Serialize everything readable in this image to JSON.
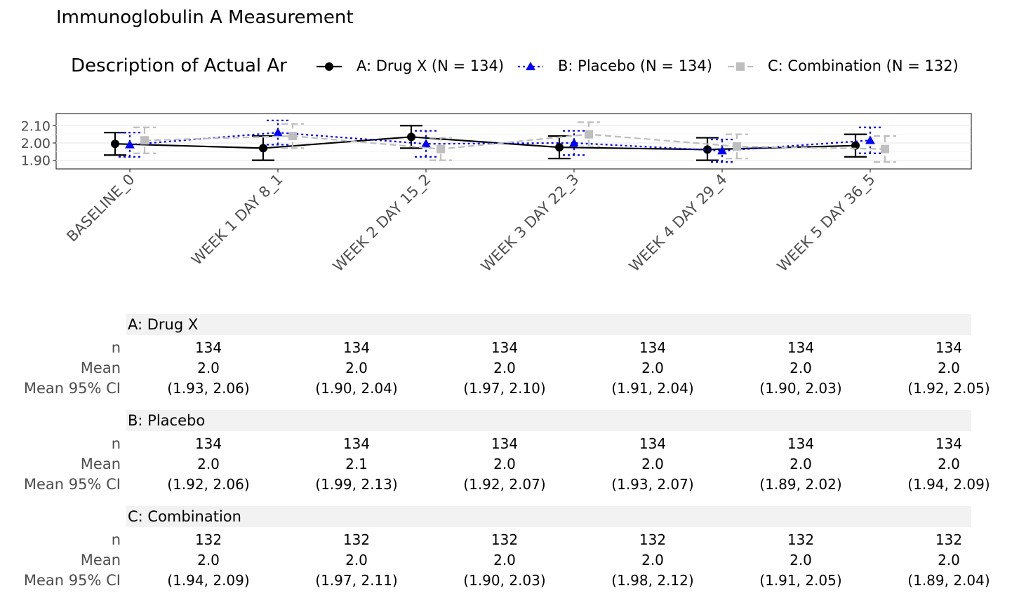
{
  "title": "Immunoglobulin A Measurement",
  "legend": {
    "title": "Description of Actual Ar",
    "entries": [
      {
        "label": "A: Drug X (N = 134)",
        "color": "#000000",
        "shape": "circle",
        "linetype": "solid"
      },
      {
        "label": "B: Placebo (N = 134)",
        "color": "#0000ff",
        "shape": "triangle",
        "linetype": "dotted"
      },
      {
        "label": "C: Combination (N = 132)",
        "color": "#bebebe",
        "shape": "square",
        "linetype": "dashed"
      }
    ]
  },
  "chart_data": {
    "type": "line",
    "title": "Immunoglobulin A Measurement",
    "xlabel": "",
    "ylabel": "",
    "categories": [
      "BASELINE_0",
      "WEEK 1 DAY 8_1",
      "WEEK 2 DAY 15_2",
      "WEEK 3 DAY 22_3",
      "WEEK 4 DAY 29_4",
      "WEEK 5 DAY 36_5"
    ],
    "yticks": [
      "1.90",
      "2.00",
      "2.10"
    ],
    "ytick_values": [
      1.9,
      2.0,
      2.1
    ],
    "ylim": [
      1.85,
      2.17
    ],
    "grid": true,
    "legend_position": "top",
    "series": [
      {
        "name": "A: Drug X (N = 134)",
        "mean": [
          1.995,
          1.97,
          2.035,
          1.975,
          1.962,
          1.985
        ],
        "lower": [
          1.93,
          1.9,
          1.97,
          1.91,
          1.9,
          1.92
        ],
        "upper": [
          2.06,
          2.04,
          2.1,
          2.04,
          2.03,
          2.05
        ]
      },
      {
        "name": "B: Placebo (N = 134)",
        "mean": [
          1.99,
          2.06,
          1.995,
          2.0,
          1.955,
          2.015
        ],
        "lower": [
          1.92,
          1.99,
          1.92,
          1.93,
          1.89,
          1.94
        ],
        "upper": [
          2.06,
          2.13,
          2.07,
          2.07,
          2.02,
          2.09
        ]
      },
      {
        "name": "C: Combination (N = 132)",
        "mean": [
          2.015,
          2.04,
          1.965,
          2.05,
          1.98,
          1.965
        ],
        "lower": [
          1.94,
          1.97,
          1.9,
          1.98,
          1.91,
          1.89
        ],
        "upper": [
          2.09,
          2.11,
          2.03,
          2.12,
          2.05,
          2.04
        ]
      }
    ]
  },
  "table": {
    "row_labels": [
      "n",
      "Mean",
      "Mean 95% CI"
    ],
    "groups": [
      {
        "name": "A: Drug X",
        "n": [
          "134",
          "134",
          "134",
          "134",
          "134",
          "134"
        ],
        "mean": [
          "2.0",
          "2.0",
          "2.0",
          "2.0",
          "2.0",
          "2.0"
        ],
        "ci": [
          "(1.93, 2.06)",
          "(1.90, 2.04)",
          "(1.97, 2.10)",
          "(1.91, 2.04)",
          "(1.90, 2.03)",
          "(1.92, 2.05)"
        ]
      },
      {
        "name": "B: Placebo",
        "n": [
          "134",
          "134",
          "134",
          "134",
          "134",
          "134"
        ],
        "mean": [
          "2.0",
          "2.1",
          "2.0",
          "2.0",
          "2.0",
          "2.0"
        ],
        "ci": [
          "(1.92, 2.06)",
          "(1.99, 2.13)",
          "(1.92, 2.07)",
          "(1.93, 2.07)",
          "(1.89, 2.02)",
          "(1.94, 2.09)"
        ]
      },
      {
        "name": "C: Combination",
        "n": [
          "132",
          "132",
          "132",
          "132",
          "132",
          "132"
        ],
        "mean": [
          "2.0",
          "2.0",
          "2.0",
          "2.0",
          "2.0",
          "2.0"
        ],
        "ci": [
          "(1.94, 2.09)",
          "(1.97, 2.11)",
          "(1.90, 2.03)",
          "(1.98, 2.12)",
          "(1.91, 2.05)",
          "(1.89, 2.04)"
        ]
      }
    ]
  }
}
